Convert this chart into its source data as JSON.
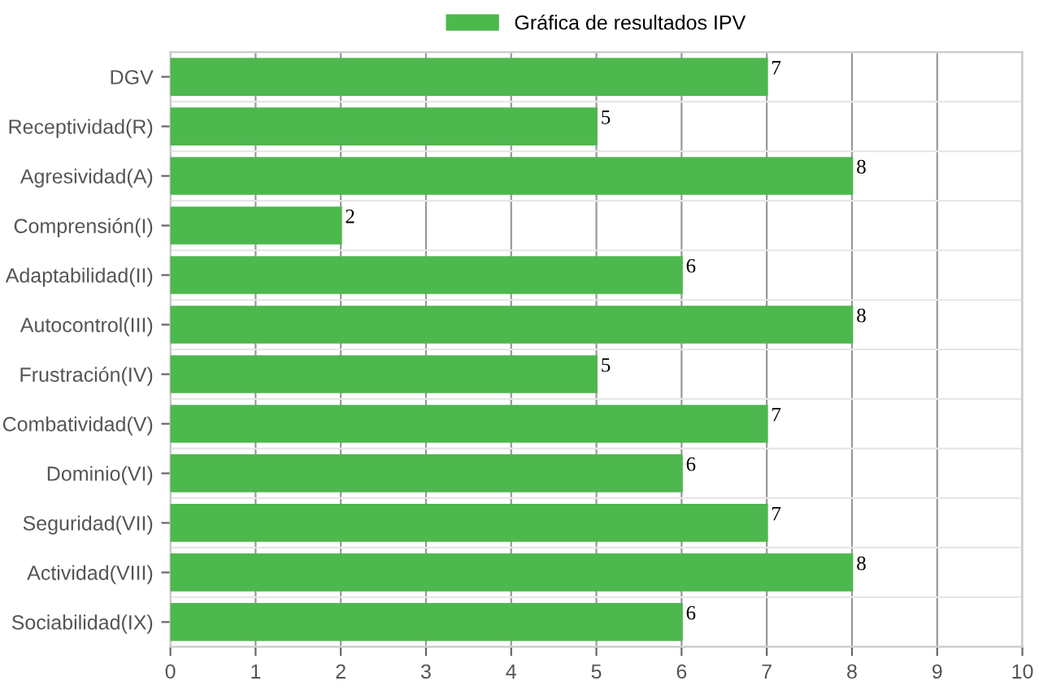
{
  "chart_data": {
    "type": "bar",
    "orientation": "horizontal",
    "categories": [
      "DGV",
      "Receptividad(R)",
      "Agresividad(A)",
      "Comprensión(I)",
      "Adaptabilidad(II)",
      "Autocontrol(III)",
      "Frustración(IV)",
      "Combatividad(V)",
      "Dominio(VI)",
      "Seguridad(VII)",
      "Actividad(VIII)",
      "Sociabilidad(IX)"
    ],
    "series": [
      {
        "name": "Gráfica de resultados IPV",
        "color": "#4db84d",
        "values": [
          7,
          5,
          8,
          2,
          6,
          8,
          5,
          7,
          6,
          7,
          8,
          6
        ]
      }
    ],
    "xlim": [
      0,
      10
    ],
    "xticks": [
      0,
      1,
      2,
      3,
      4,
      5,
      6,
      7,
      8,
      9,
      10
    ],
    "grid": true,
    "legend": "top",
    "data_labels": true
  }
}
